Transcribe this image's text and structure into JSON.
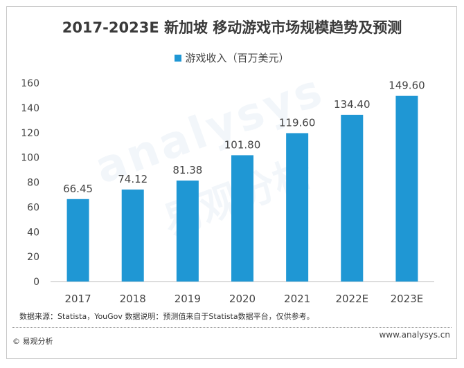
{
  "chart_data": {
    "type": "bar",
    "title": "2017-2023E 新加坡 移动游戏市场规模趋势及预测",
    "categories": [
      "2017",
      "2018",
      "2019",
      "2020",
      "2021",
      "2022E",
      "2023E"
    ],
    "series": [
      {
        "name": "游戏收入（百万美元）",
        "values": [
          66.45,
          74.12,
          81.38,
          101.8,
          119.6,
          134.4,
          149.6
        ],
        "labels": [
          "66.45",
          "74.12",
          "81.38",
          "101.80",
          "119.60",
          "134.40",
          "149.60"
        ],
        "color": "#1f97d4"
      }
    ],
    "yticks": [
      "0",
      "20",
      "40",
      "60",
      "80",
      "100",
      "120",
      "140",
      "160"
    ],
    "ylim": [
      0,
      160
    ],
    "grid": false,
    "legend": "top"
  },
  "footer": {
    "source": "数据来源：Statista，YouGov 数据说明：预测值来自于Statista数据平台，仅供参考。",
    "copyright": "© 易观分析",
    "url": "www.analysys.cn"
  },
  "watermark": {
    "text1": "analysys",
    "text2": "易观分析"
  }
}
